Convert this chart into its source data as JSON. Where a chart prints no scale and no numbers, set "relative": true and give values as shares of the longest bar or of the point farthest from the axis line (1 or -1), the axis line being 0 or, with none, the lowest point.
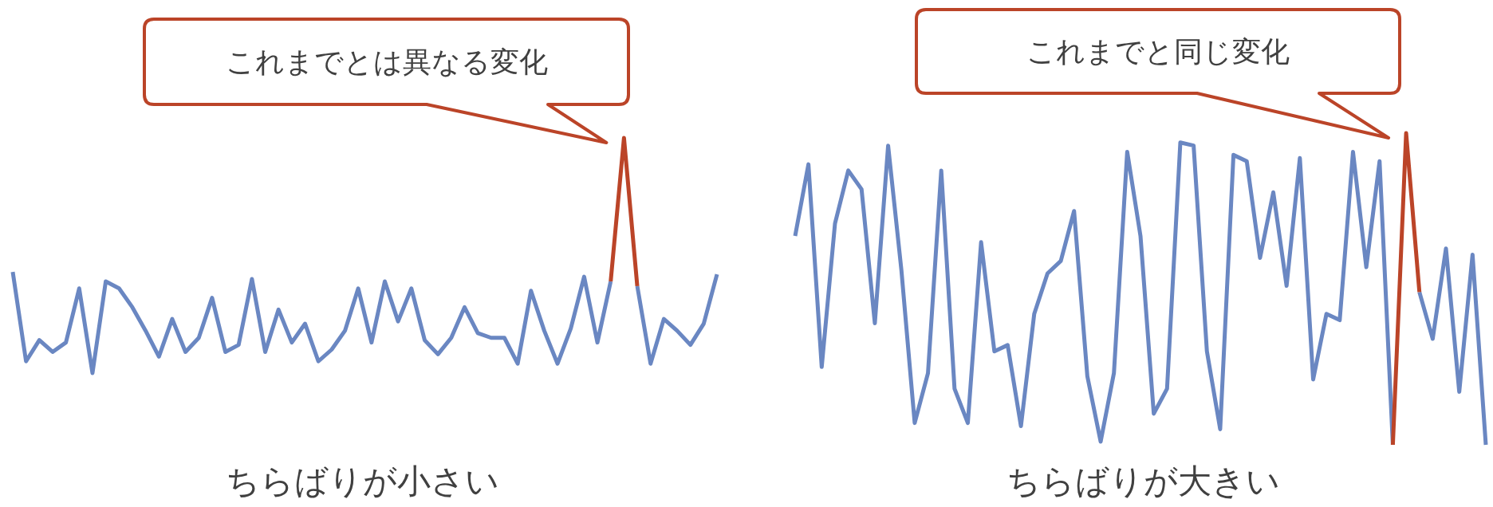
{
  "chart_data": [
    {
      "type": "line",
      "relative": true,
      "xlabel": "ちらばりが小さい",
      "annotations": [
        "これまでとは異なる変化"
      ],
      "categories": [
        null,
        null,
        null,
        null,
        null,
        null,
        null,
        null,
        null,
        null,
        null,
        null,
        null,
        null,
        null,
        null,
        null,
        null,
        null,
        null,
        null,
        null,
        null,
        null,
        null,
        null,
        null,
        null,
        null,
        null,
        null,
        null,
        null,
        null,
        null,
        null,
        null,
        null,
        null,
        null,
        null,
        null,
        null,
        null,
        null,
        null,
        null,
        null,
        null,
        null,
        null,
        null,
        null,
        null
      ],
      "series": [
        {
          "color": "#6a87c2",
          "values": [
            0.43,
            0.05,
            0.14,
            0.09,
            0.13,
            0.36,
            0,
            0.39,
            0.36,
            0.28,
            0.18,
            0.07,
            0.23,
            0.09,
            0.15,
            0.32,
            0.09,
            0.12,
            0.4,
            0.09,
            0.27,
            0.13,
            0.21,
            0.05,
            0.1,
            0.18,
            0.36,
            0.13,
            0.39,
            0.22,
            0.36,
            0.14,
            0.08,
            0.15,
            0.28,
            0.17,
            0.15,
            0.15,
            0.04,
            0.35,
            0.18,
            0.04,
            0.19,
            0.41,
            0.13,
            0.39,
            null,
            0.37,
            0.04,
            0.23,
            0.18,
            0.12,
            0.21,
            0.42
          ]
        },
        {
          "color": "#bb4428",
          "values": [
            null,
            null,
            null,
            null,
            null,
            null,
            null,
            null,
            null,
            null,
            null,
            null,
            null,
            null,
            null,
            null,
            null,
            null,
            null,
            null,
            null,
            null,
            null,
            null,
            null,
            null,
            null,
            null,
            null,
            null,
            null,
            null,
            null,
            null,
            null,
            null,
            null,
            null,
            null,
            null,
            null,
            null,
            null,
            null,
            null,
            0.39,
            1,
            0.37,
            null,
            null,
            null,
            null,
            null,
            null
          ]
        }
      ]
    },
    {
      "type": "line",
      "relative": true,
      "xlabel": "ちらばりが大きい",
      "annotations": [
        "これまでと同じ変化"
      ],
      "categories": [
        null,
        null,
        null,
        null,
        null,
        null,
        null,
        null,
        null,
        null,
        null,
        null,
        null,
        null,
        null,
        null,
        null,
        null,
        null,
        null,
        null,
        null,
        null,
        null,
        null,
        null,
        null,
        null,
        null,
        null,
        null,
        null,
        null,
        null,
        null,
        null,
        null,
        null,
        null,
        null,
        null,
        null,
        null,
        null,
        null,
        null,
        null,
        null,
        null,
        null,
        null,
        null,
        null
      ],
      "series": [
        {
          "color": "#6a87c2",
          "values": [
            0.67,
            0.9,
            0.25,
            0.71,
            0.88,
            0.82,
            0.39,
            0.96,
            0.56,
            0.07,
            0.23,
            0.88,
            0.18,
            0.07,
            0.65,
            0.3,
            0.32,
            0.06,
            0.42,
            0.55,
            0.59,
            0.75,
            0.22,
            0.01,
            0.23,
            0.94,
            0.67,
            0.1,
            0.18,
            0.97,
            0.96,
            0.3,
            0.05,
            0.93,
            0.91,
            0.6,
            0.81,
            0.51,
            0.92,
            0.21,
            0.42,
            0.4,
            0.94,
            0.57,
            0.91,
            0,
            null,
            0.49,
            0.34,
            0.63,
            0.17,
            0.61,
            0
          ]
        },
        {
          "color": "#bb4428",
          "values": [
            null,
            null,
            null,
            null,
            null,
            null,
            null,
            null,
            null,
            null,
            null,
            null,
            null,
            null,
            null,
            null,
            null,
            null,
            null,
            null,
            null,
            null,
            null,
            null,
            null,
            null,
            null,
            null,
            null,
            null,
            null,
            null,
            null,
            null,
            null,
            null,
            null,
            null,
            null,
            null,
            null,
            null,
            null,
            null,
            null,
            0,
            1,
            0.49,
            null,
            null,
            null,
            null,
            null
          ]
        }
      ]
    }
  ]
}
